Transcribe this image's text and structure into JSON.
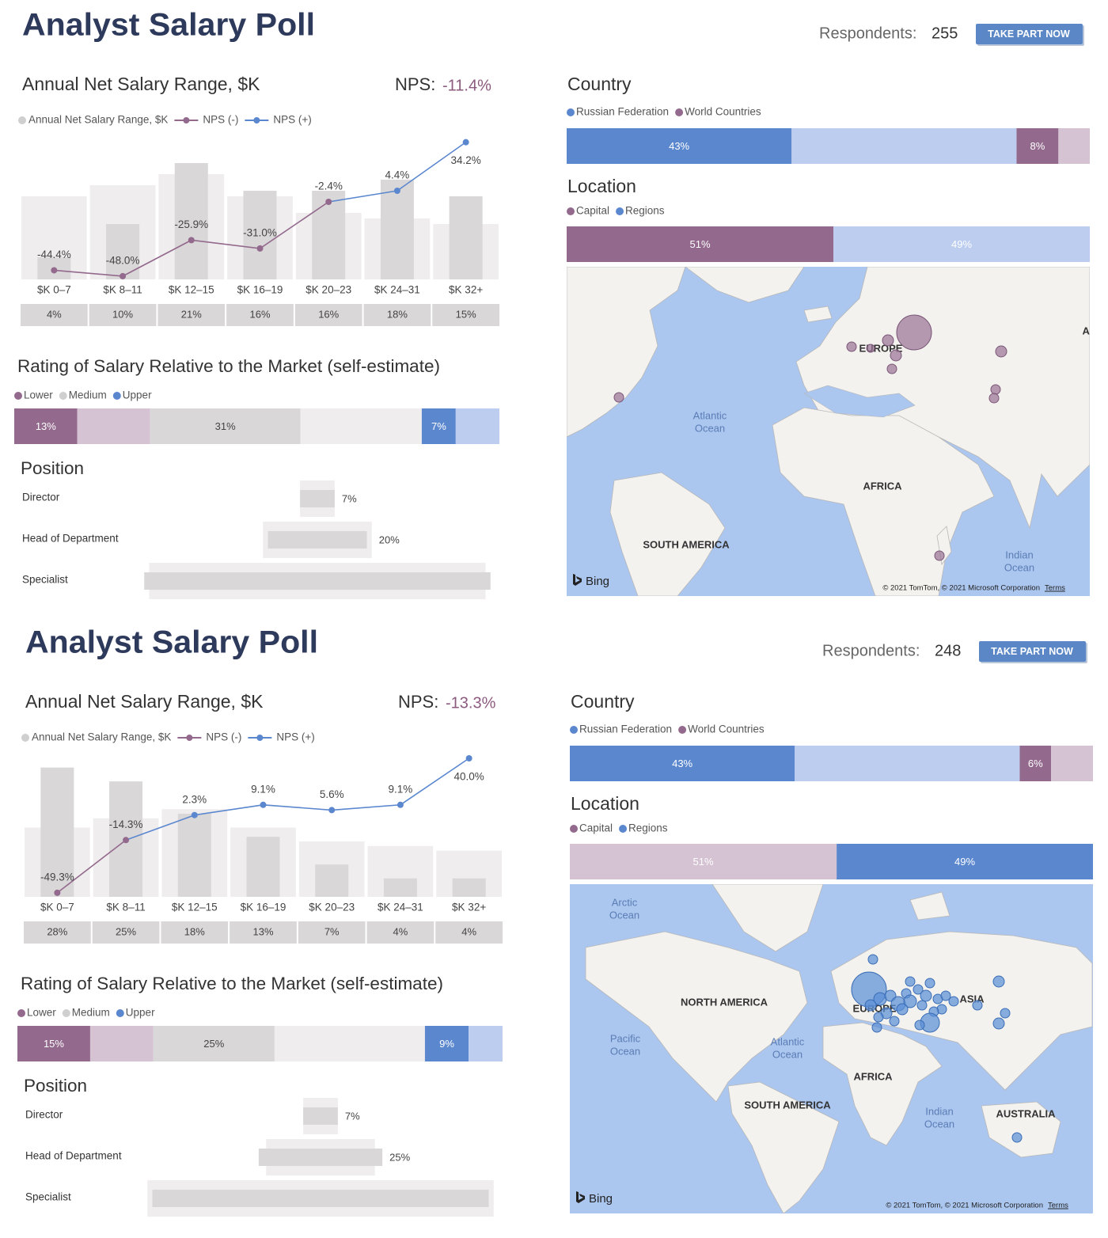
{
  "dashboards": [
    {
      "title": "Analyst Salary Poll",
      "respondents_label": "Respondents:",
      "respondents": "255",
      "button": "TAKE PART NOW",
      "salary": {
        "type": "bar",
        "title": "Annual Net Salary Range, $K",
        "nps_label": "NPS:",
        "nps": "-11.4%",
        "categories": [
          "$K 0–7",
          "$K 8–11",
          "$K 12–15",
          "$K 16–19",
          "$K 20–23",
          "$K 24–31",
          "$K 32+"
        ],
        "ylim": [
          0,
          25
        ],
        "y2lim": [
          -50,
          35
        ],
        "background": {
          "color": "#efeded",
          "values": [
            15,
            17,
            19,
            15,
            12,
            11,
            10
          ]
        },
        "series": [
          {
            "name": "Annual Net Salary Range, $K",
            "color": "#d9d7d7",
            "values": [
              4,
              10,
              21,
              16,
              16,
              18,
              15
            ],
            "value_labels": [
              "4%",
              "10%",
              "21%",
              "16%",
              "16%",
              "18%",
              "15%"
            ]
          },
          {
            "name": "NPS (-)",
            "color": "#93698d",
            "axis": "y2",
            "values": [
              -44.4,
              -48.0,
              -25.9,
              -31.0,
              -2.4,
              null,
              null
            ],
            "value_labels": [
              "-44.4%",
              "-48.0%",
              "-25.9%",
              "-31.0%",
              "-2.4%",
              null,
              null
            ]
          },
          {
            "name": "NPS (+)",
            "color": "#5b87cf",
            "axis": "y2",
            "values": [
              null,
              null,
              null,
              null,
              null,
              4.4,
              34.2
            ],
            "value_labels": [
              null,
              null,
              null,
              null,
              null,
              "4.4%",
              "34.2%"
            ]
          }
        ]
      },
      "rating": {
        "title": "Rating of Salary Relative to the Market (self-estimate)",
        "segments": [
          {
            "name": "Lower",
            "color": "#93698d",
            "value": 13,
            "value_label": "13%",
            "label_color": "#ffffff",
            "background": 15,
            "background_color": "#d5c3d3"
          },
          {
            "name": "Medium",
            "color": "#d9d7d7",
            "value": 31,
            "value_label": "31%",
            "label_color": "#444444",
            "background": 25,
            "background_color": "#efeded"
          },
          {
            "name": "Upper",
            "color": "#5b87cf",
            "value": 7,
            "value_label": "7%",
            "label_color": "#ffffff",
            "background": 9,
            "background_color": "#bccdef"
          }
        ]
      },
      "position": {
        "title": "Position",
        "color": "#d9d7d7",
        "background_color": "#efeded",
        "rows": [
          {
            "name": "Director",
            "value": 7,
            "value_label": "7%",
            "background": 7
          },
          {
            "name": "Head of Department",
            "value": 20,
            "value_label": "20%",
            "background": 22
          },
          {
            "name": "Specialist",
            "value": 70,
            "background": 68
          }
        ]
      },
      "country": {
        "title": "Country",
        "segments": [
          {
            "name": "Russian Federation",
            "color": "#5b87cf",
            "value": 43,
            "value_label": "43%",
            "label_color": "#ffffff",
            "background": 43,
            "background_color": "#bccdef"
          },
          {
            "name": "World Countries",
            "color": "#93698d",
            "value": 8,
            "value_label": "8%",
            "label_color": "#ffffff",
            "background": 6,
            "background_color": "#d5c3d3"
          }
        ]
      },
      "location": {
        "title": "Location",
        "segments": [
          {
            "name": "Capital",
            "legend_color": "#93698d",
            "color": "#93698d",
            "value": 51,
            "value_label": "51%",
            "label_color": "#ffffff"
          },
          {
            "name": "Regions",
            "legend_color": "#5b87cf",
            "color": "#bccdef",
            "value": 49,
            "value_label": "49%",
            "label_color": "#ffffff"
          }
        ]
      },
      "map": {
        "labels": [
          "EUROPE",
          "ASIA",
          "Atlantic",
          "Ocean",
          "AFRICA",
          "SOUTH AMERICA",
          "Indian",
          "Ocean"
        ],
        "brand": "Bing",
        "copyright": "© 2021 TomTom, © 2021 Microsoft Corporation",
        "terms": "Terms"
      }
    },
    {
      "title": "Analyst Salary Poll",
      "respondents_label": "Respondents:",
      "respondents": "248",
      "button": "TAKE PART NOW",
      "salary": {
        "type": "bar",
        "title": "Annual Net Salary Range, $K",
        "nps_label": "NPS:",
        "nps": "-13.3%",
        "categories": [
          "$K 0–7",
          "$K 8–11",
          "$K 12–15",
          "$K 16–19",
          "$K 20–23",
          "$K 24–31",
          "$K 32+"
        ],
        "ylim": [
          0,
          30
        ],
        "y2lim": [
          -52,
          40
        ],
        "background": {
          "color": "#efeded",
          "values": [
            15,
            17,
            19,
            15,
            12,
            11,
            10
          ]
        },
        "series": [
          {
            "name": "Annual Net Salary Range, $K",
            "color": "#d9d7d7",
            "values": [
              28,
              25,
              18,
              13,
              7,
              4,
              4
            ],
            "value_labels": [
              "28%",
              "25%",
              "18%",
              "13%",
              "7%",
              "4%",
              "4%"
            ]
          },
          {
            "name": "NPS (-)",
            "color": "#93698d",
            "axis": "y2",
            "values": [
              -49.3,
              -14.3,
              null,
              null,
              null,
              null,
              null
            ],
            "value_labels": [
              "-49.3%",
              "-14.3%",
              null,
              null,
              null,
              null,
              null
            ]
          },
          {
            "name": "NPS (+)",
            "color": "#5b87cf",
            "axis": "y2",
            "values": [
              null,
              null,
              2.3,
              9.1,
              5.6,
              9.1,
              40.0
            ],
            "value_labels": [
              null,
              null,
              "2.3%",
              "9.1%",
              "5.6%",
              "9.1%",
              "40.0%"
            ]
          }
        ]
      },
      "rating": {
        "title": "Rating of Salary Relative to the Market (self-estimate)",
        "segments": [
          {
            "name": "Lower",
            "color": "#93698d",
            "value": 15,
            "value_label": "15%",
            "label_color": "#ffffff",
            "background": 13,
            "background_color": "#d5c3d3"
          },
          {
            "name": "Medium",
            "color": "#d9d7d7",
            "value": 25,
            "value_label": "25%",
            "label_color": "#444444",
            "background": 31,
            "background_color": "#efeded"
          },
          {
            "name": "Upper",
            "color": "#5b87cf",
            "value": 9,
            "value_label": "9%",
            "label_color": "#ffffff",
            "background": 7,
            "background_color": "#bccdef"
          }
        ]
      },
      "position": {
        "title": "Position",
        "color": "#d9d7d7",
        "background_color": "#efeded",
        "rows": [
          {
            "name": "Director",
            "value": 7,
            "value_label": "7%",
            "background": 7
          },
          {
            "name": "Head of Department",
            "value": 25,
            "value_label": "25%",
            "background": 22
          },
          {
            "name": "Specialist",
            "value": 68,
            "background": 70
          }
        ]
      },
      "country": {
        "title": "Country",
        "segments": [
          {
            "name": "Russian Federation",
            "color": "#5b87cf",
            "value": 43,
            "value_label": "43%",
            "label_color": "#ffffff",
            "background": 43,
            "background_color": "#bccdef"
          },
          {
            "name": "World Countries",
            "color": "#93698d",
            "value": 6,
            "value_label": "6%",
            "label_color": "#ffffff",
            "background": 8,
            "background_color": "#d5c3d3"
          }
        ]
      },
      "location": {
        "title": "Location",
        "segments": [
          {
            "name": "Capital",
            "legend_color": "#93698d",
            "color": "#d5c3d3",
            "value": 51,
            "value_label": "51%",
            "label_color": "#ffffff"
          },
          {
            "name": "Regions",
            "legend_color": "#5b87cf",
            "color": "#5b87cf",
            "value": 49,
            "value_label": "49%",
            "label_color": "#ffffff"
          }
        ]
      },
      "map": {
        "labels": [
          "Arctic",
          "Ocean",
          "NORTH AMERICA",
          "Pacific",
          "Ocean",
          "Atlantic",
          "Ocean",
          "EUROPE",
          "ASIA",
          "AFRICA",
          "SOUTH AMERICA",
          "Indian",
          "Ocean",
          "AUSTRALIA"
        ],
        "brand": "Bing",
        "copyright": "© 2021 TomTom, © 2021 Microsoft Corporation",
        "terms": "Terms"
      }
    }
  ]
}
